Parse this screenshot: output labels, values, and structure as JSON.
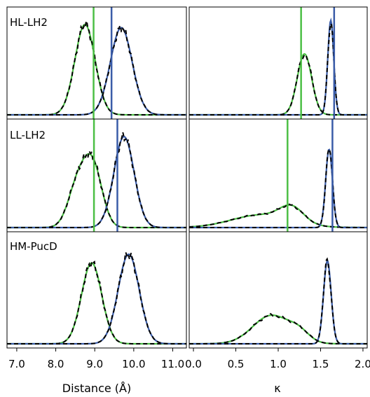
{
  "colors": {
    "green": "#4cbf45",
    "blue": "#3a5ca8",
    "dashed": "#000000"
  },
  "chart_data": {
    "type": "line",
    "xaxes": [
      {
        "label": "Distance (Å)",
        "lim": [
          6.75,
          11.35
        ],
        "ticks": [
          "7.0",
          "8.0",
          "9.0",
          "10.0",
          "11.0"
        ],
        "tick_values": [
          7,
          8,
          9,
          10,
          11
        ]
      },
      {
        "label": "κ",
        "lim": [
          -0.05,
          2.05
        ],
        "ticks": [
          "0.0",
          "0.5",
          "1.0",
          "1.5",
          "2.0"
        ],
        "tick_values": [
          0,
          0.5,
          1,
          1.5,
          2
        ]
      }
    ],
    "rows": [
      {
        "name": "HL-LH2",
        "distance": {
          "green": {
            "mu": 8.75,
            "sigma": 0.26,
            "amp": 0.86
          },
          "blue": {
            "mu": 9.68,
            "sigma": 0.28,
            "amp": 0.83
          },
          "vlines": [
            {
              "x": 8.97,
              "color": "green"
            },
            {
              "x": 9.43,
              "color": "blue"
            }
          ]
        },
        "kappa": {
          "green": {
            "mu": 1.31,
            "sigma": 0.085,
            "amp": 0.58
          },
          "blue": {
            "mu": 1.62,
            "sigma": 0.035,
            "amp": 0.9
          },
          "vlines": [
            {
              "x": 1.27,
              "color": "green"
            },
            {
              "x": 1.66,
              "color": "blue"
            }
          ]
        }
      },
      {
        "name": "LL-LH2",
        "distance": {
          "green": {
            "mu": 8.95,
            "sigma": 0.24,
            "amp": 0.57,
            "mu2": 8.55,
            "sigma2": 0.24,
            "amp2": 0.38
          },
          "blue": {
            "mu": 9.75,
            "sigma": 0.26,
            "amp": 0.86
          },
          "vlines": [
            {
              "x": 8.98,
              "color": "green"
            },
            {
              "x": 9.58,
              "color": "blue"
            }
          ]
        },
        "kappa": {
          "green": {
            "mu": 1.16,
            "sigma": 0.14,
            "amp": 0.14,
            "mu2": 0.8,
            "sigma2": 0.35,
            "amp2": 0.12
          },
          "blue": {
            "mu": 1.6,
            "sigma": 0.04,
            "amp": 0.74
          },
          "vlines": [
            {
              "x": 1.11,
              "color": "green"
            },
            {
              "x": 1.64,
              "color": "blue"
            }
          ]
        }
      },
      {
        "name": "HM-PucD",
        "distance": {
          "green": {
            "mu": 8.92,
            "sigma": 0.26,
            "amp": 0.74
          },
          "blue": {
            "mu": 9.87,
            "sigma": 0.27,
            "amp": 0.82
          },
          "vlines": []
        },
        "kappa": {
          "green": {
            "mu": 0.92,
            "sigma": 0.22,
            "amp": 0.26,
            "mu2": 1.25,
            "sigma2": 0.12,
            "amp2": 0.08
          },
          "blue": {
            "mu": 1.58,
            "sigma": 0.045,
            "amp": 0.76
          },
          "vlines": []
        }
      }
    ],
    "grid": false
  }
}
